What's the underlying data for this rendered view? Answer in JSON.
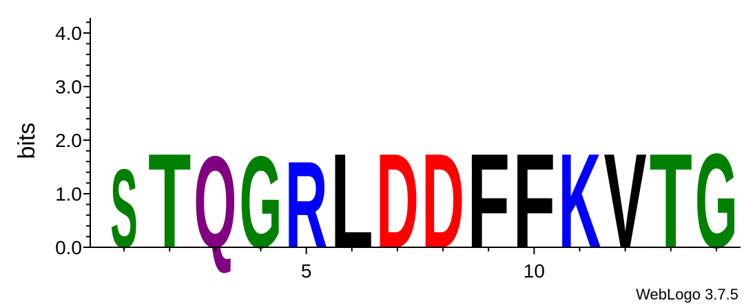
{
  "chart_data": {
    "type": "sequence-logo",
    "ylabel": "bits",
    "ylim": [
      0,
      4.2
    ],
    "y_ticks": [
      "0.0",
      "1.0",
      "2.0",
      "3.0",
      "4.0"
    ],
    "x_range": [
      1,
      14
    ],
    "x_ticks": [
      "5",
      "10"
    ],
    "positions": [
      {
        "pos": 1,
        "letter": "S",
        "bits": 1.5,
        "color": "#008000"
      },
      {
        "pos": 2,
        "letter": "T",
        "bits": 1.8,
        "color": "#008000"
      },
      {
        "pos": 3,
        "letter": "Q",
        "bits": 1.75,
        "color": "#800080"
      },
      {
        "pos": 4,
        "letter": "G",
        "bits": 1.75,
        "color": "#008000"
      },
      {
        "pos": 5,
        "letter": "R",
        "bits": 1.65,
        "color": "#0000ff"
      },
      {
        "pos": 6,
        "letter": "L",
        "bits": 1.8,
        "color": "#000000"
      },
      {
        "pos": 7,
        "letter": "D",
        "bits": 1.8,
        "color": "#ff0000"
      },
      {
        "pos": 8,
        "letter": "D",
        "bits": 1.8,
        "color": "#ff0000"
      },
      {
        "pos": 9,
        "letter": "F",
        "bits": 1.8,
        "color": "#000000"
      },
      {
        "pos": 10,
        "letter": "F",
        "bits": 1.8,
        "color": "#000000"
      },
      {
        "pos": 11,
        "letter": "K",
        "bits": 1.8,
        "color": "#0000ff"
      },
      {
        "pos": 12,
        "letter": "V",
        "bits": 1.8,
        "color": "#000000"
      },
      {
        "pos": 13,
        "letter": "T",
        "bits": 1.8,
        "color": "#008000"
      },
      {
        "pos": 14,
        "letter": "G",
        "bits": 1.8,
        "color": "#008000"
      }
    ]
  },
  "footer": {
    "label": "WebLogo 3.7.5"
  }
}
